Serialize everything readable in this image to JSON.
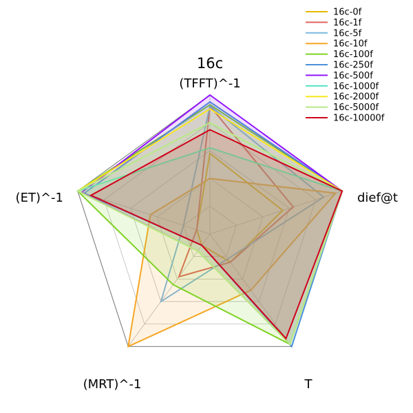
{
  "chart_data": {
    "type": "radar",
    "title": "16c",
    "axes": [
      "(TFFT)^-1",
      "dief@t",
      "T",
      "(MRT)^-1",
      "(ET)^-1"
    ],
    "rmax": 1.0,
    "grid_levels": [
      0.2,
      0.4,
      0.6,
      0.8,
      1.0
    ],
    "grid": true,
    "legend_placement": "top-right",
    "series": [
      {
        "name": "16c-0f",
        "color": "#e6b800",
        "fill": false,
        "values": [
          0.58,
          0.55,
          0.25,
          0.1,
          0.1
        ]
      },
      {
        "name": "16c-1f",
        "color": "#e06060",
        "fill": false,
        "values": [
          0.92,
          0.63,
          0.25,
          0.38,
          0.1
        ]
      },
      {
        "name": "16c-5f",
        "color": "#7ab8e0",
        "fill": false,
        "values": [
          0.92,
          0.86,
          0.22,
          0.6,
          0.2
        ]
      },
      {
        "name": "16c-10f",
        "color": "#f5a623",
        "fill": true,
        "values": [
          0.4,
          0.95,
          0.5,
          1.0,
          0.45
        ]
      },
      {
        "name": "16c-100f",
        "color": "#7ed321",
        "fill": true,
        "values": [
          0.93,
          1.0,
          0.98,
          0.45,
          1.0
        ]
      },
      {
        "name": "16c-250f",
        "color": "#4a90d9",
        "fill": true,
        "values": [
          0.95,
          1.0,
          1.0,
          0.1,
          0.95
        ]
      },
      {
        "name": "16c-500f",
        "color": "#9013fe",
        "fill": true,
        "values": [
          1.0,
          1.0,
          0.98,
          0.15,
          0.97
        ]
      },
      {
        "name": "16c-1000f",
        "color": "#50e3c2",
        "fill": true,
        "values": [
          0.62,
          1.0,
          0.98,
          0.15,
          1.0
        ]
      },
      {
        "name": "16c-2000f",
        "color": "#f8e71c",
        "fill": true,
        "values": [
          0.9,
          1.0,
          0.98,
          0.15,
          1.0
        ]
      },
      {
        "name": "16c-5000f",
        "color": "#b8e986",
        "fill": true,
        "values": [
          0.8,
          1.0,
          0.98,
          0.15,
          1.0
        ]
      },
      {
        "name": "16c-10000f",
        "color": "#d0021b",
        "fill": true,
        "values": [
          0.75,
          1.0,
          0.93,
          0.1,
          0.9
        ]
      }
    ]
  }
}
